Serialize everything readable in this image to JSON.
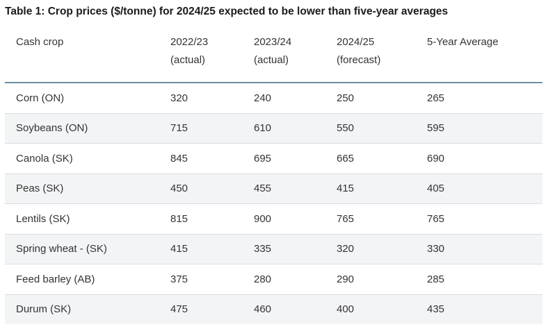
{
  "title": "Table 1: Crop prices ($/tonne) for 2024/25 expected to be lower than five-year averages",
  "columns": [
    {
      "line1": "Cash crop",
      "line2": ""
    },
    {
      "line1": "2022/23",
      "line2": "(actual)"
    },
    {
      "line1": "2023/24",
      "line2": "(actual)"
    },
    {
      "line1": "2024/25",
      "line2": "(forecast)"
    },
    {
      "line1": "5-Year Average",
      "line2": ""
    }
  ],
  "rows": [
    [
      "Corn (ON)",
      "320",
      "240",
      "250",
      "265"
    ],
    [
      "Soybeans (ON)",
      "715",
      "610",
      "550",
      "595"
    ],
    [
      "Canola (SK)",
      "845",
      "695",
      "665",
      "690"
    ],
    [
      "Peas (SK)",
      "450",
      "455",
      "415",
      "405"
    ],
    [
      "Lentils (SK)",
      "815",
      "900",
      "765",
      "765"
    ],
    [
      "Spring wheat - (SK)",
      "415",
      "335",
      "320",
      "330"
    ],
    [
      "Feed barley (AB)",
      "375",
      "280",
      "290",
      "285"
    ],
    [
      "Durum (SK)",
      "475",
      "460",
      "400",
      "435"
    ]
  ]
}
